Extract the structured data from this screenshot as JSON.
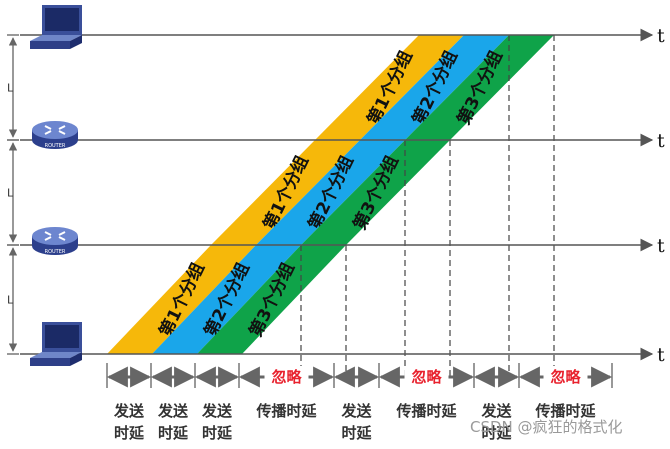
{
  "nodes": [
    {
      "type": "host",
      "icon": "computer-icon"
    },
    {
      "type": "router",
      "icon": "router-icon",
      "label": "ROUTER"
    },
    {
      "type": "router",
      "icon": "router-icon",
      "label": "ROUTER"
    },
    {
      "type": "host",
      "icon": "computer-icon"
    }
  ],
  "time_axis_label": "t",
  "link_label": "L",
  "packets": [
    {
      "label": "第1个分组",
      "color": "#f6b80a"
    },
    {
      "label": "第2个分组",
      "color": "#1aa6ea"
    },
    {
      "label": "第3个分组",
      "color": "#0fa349"
    }
  ],
  "delay_segments": [
    {
      "line1": "发送",
      "line2": "时延"
    },
    {
      "line1": "发送",
      "line2": "时延"
    },
    {
      "line1": "发送",
      "line2": "时延"
    },
    {
      "line1": "传播时延",
      "line2": "",
      "ignore": "忽略"
    },
    {
      "line1": "发送",
      "line2": "时延"
    },
    {
      "line1": "传播时延",
      "line2": "",
      "ignore": "忽略"
    },
    {
      "line1": "发送",
      "line2": "时延"
    },
    {
      "line1": "传播时延",
      "line2": "",
      "ignore": "忽略"
    }
  ],
  "watermark": "CSDN @疯狂的格式化",
  "colors": {
    "axis": "#555555",
    "arrow": "#666666",
    "ignore_text": "#e8212d"
  }
}
